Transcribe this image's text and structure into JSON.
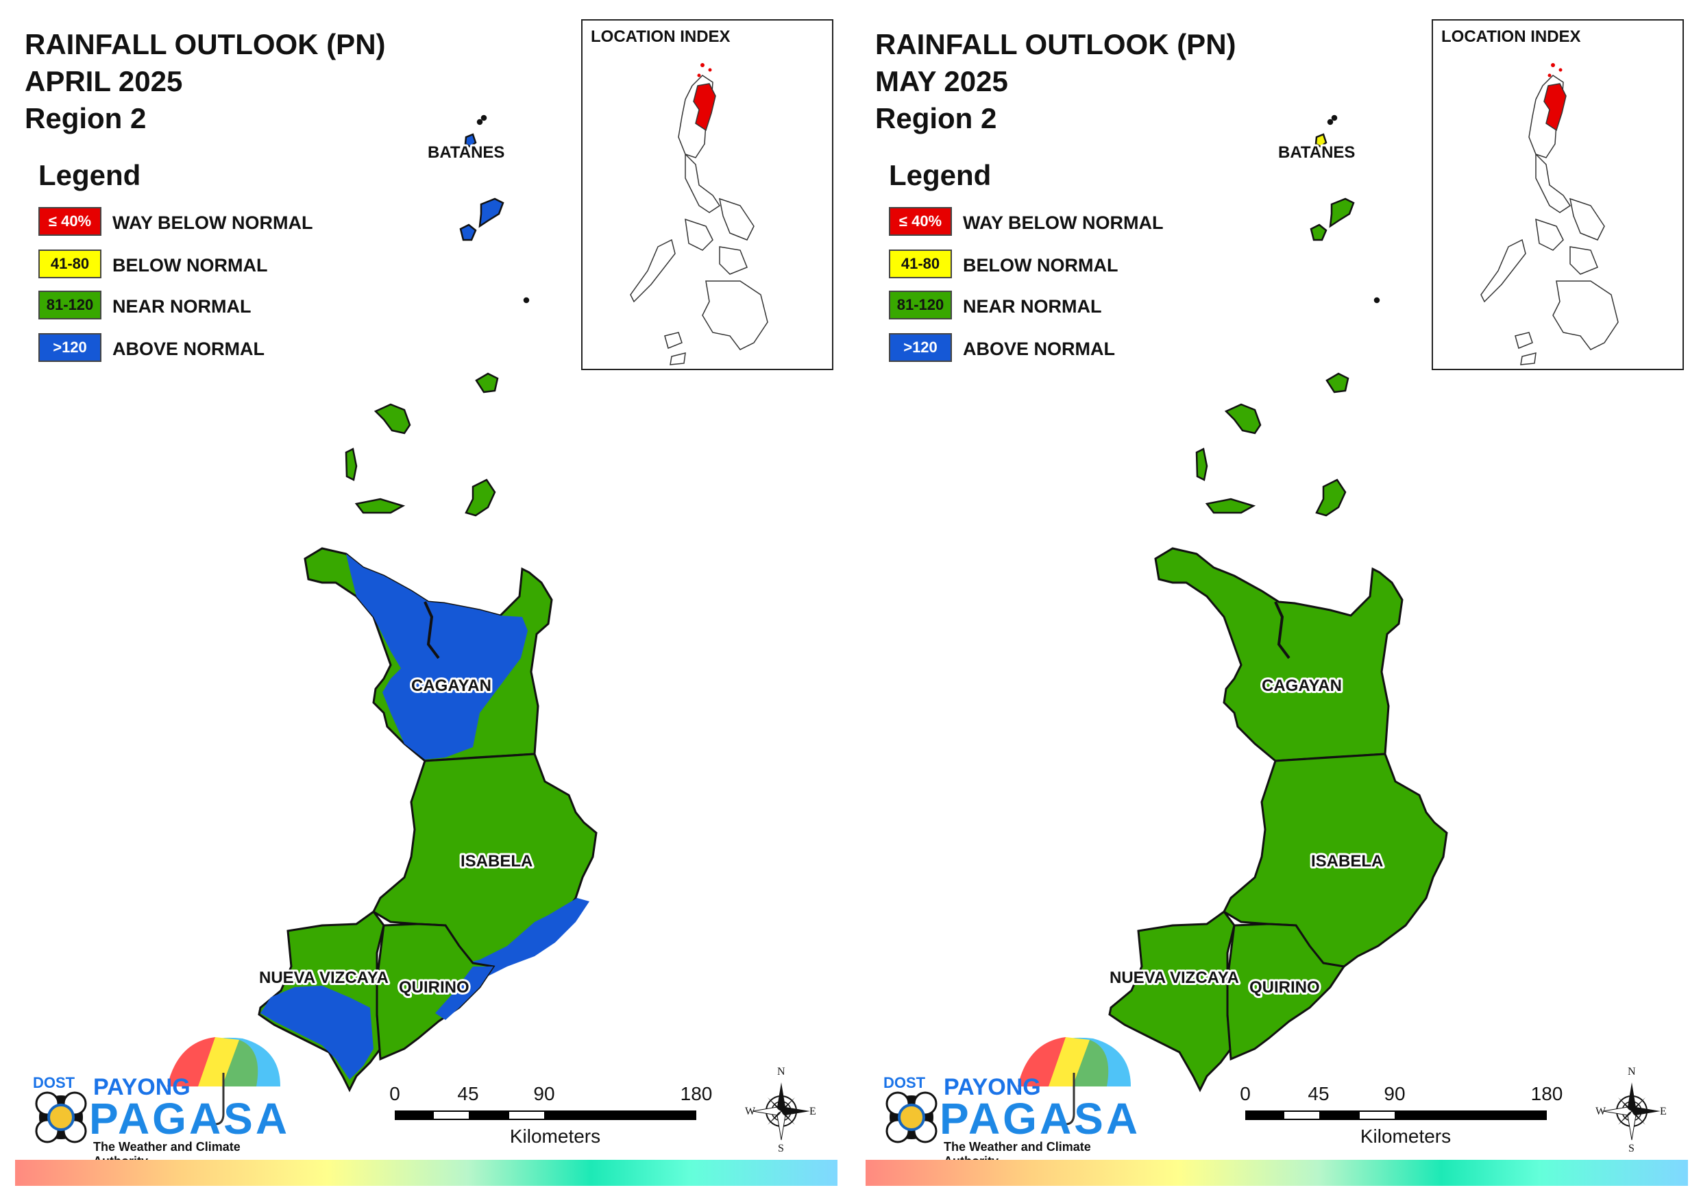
{
  "panels": [
    {
      "title_line1": "RAINFALL OUTLOOK (PN)",
      "title_line2": "APRIL 2025",
      "title_line3": "Region 2",
      "fill": {
        "batanes": "#1558d6",
        "babuyan": "#38a800",
        "cagayan_base": "#38a800",
        "cagayan_overlay": "#1558d6",
        "isabela": "#38a800",
        "isabela_overlay": "#1558d6",
        "nueva_vizcaya": "#38a800",
        "nueva_vizcaya_overlay": "#1558d6",
        "quirino": "#38a800",
        "quirino_overlay": "#1558d6"
      }
    },
    {
      "title_line1": "RAINFALL OUTLOOK (PN)",
      "title_line2": "MAY 2025",
      "title_line3": "Region 2",
      "fill": {
        "batanes": "#38a800",
        "batanes_small": "#f2f20a",
        "babuyan": "#38a800",
        "cagayan_base": "#38a800",
        "cagayan_overlay": "none",
        "isabela": "#38a800",
        "isabela_overlay": "none",
        "nueva_vizcaya": "#38a800",
        "nueva_vizcaya_overlay": "none",
        "quirino": "#38a800",
        "quirino_overlay": "none"
      }
    }
  ],
  "legend": {
    "title": "Legend",
    "items": [
      {
        "range": "≤ 40%",
        "label": "WAY BELOW NORMAL",
        "color": "#e60000",
        "text_color": "#ffffff"
      },
      {
        "range": "41-80",
        "label": "BELOW NORMAL",
        "color": "#ffff00",
        "text_color": "#111111"
      },
      {
        "range": "81-120",
        "label": "NEAR NORMAL",
        "color": "#38a800",
        "text_color": "#111111"
      },
      {
        "range": ">120",
        "label": "ABOVE NORMAL",
        "color": "#1558d6",
        "text_color": "#ffffff"
      }
    ]
  },
  "inset": {
    "title": "LOCATION INDEX",
    "highlight_color": "#e60000"
  },
  "provinces": {
    "batanes": "BATANES",
    "cagayan": "CAGAYAN",
    "isabela": "ISABELA",
    "nueva_vizcaya": "NUEVA VIZCAYA",
    "quirino": "QUIRINO"
  },
  "scalebar": {
    "ticks": [
      "0",
      "45",
      "90",
      "180"
    ],
    "units": "Kilometers"
  },
  "compass": {
    "n": "N",
    "s": "S",
    "e": "E",
    "w": "W"
  },
  "logo": {
    "dost": "DOST",
    "payong": "PAYONG",
    "pagasa": "PAGASA",
    "tagline": "The Weather and Climate Authority"
  }
}
